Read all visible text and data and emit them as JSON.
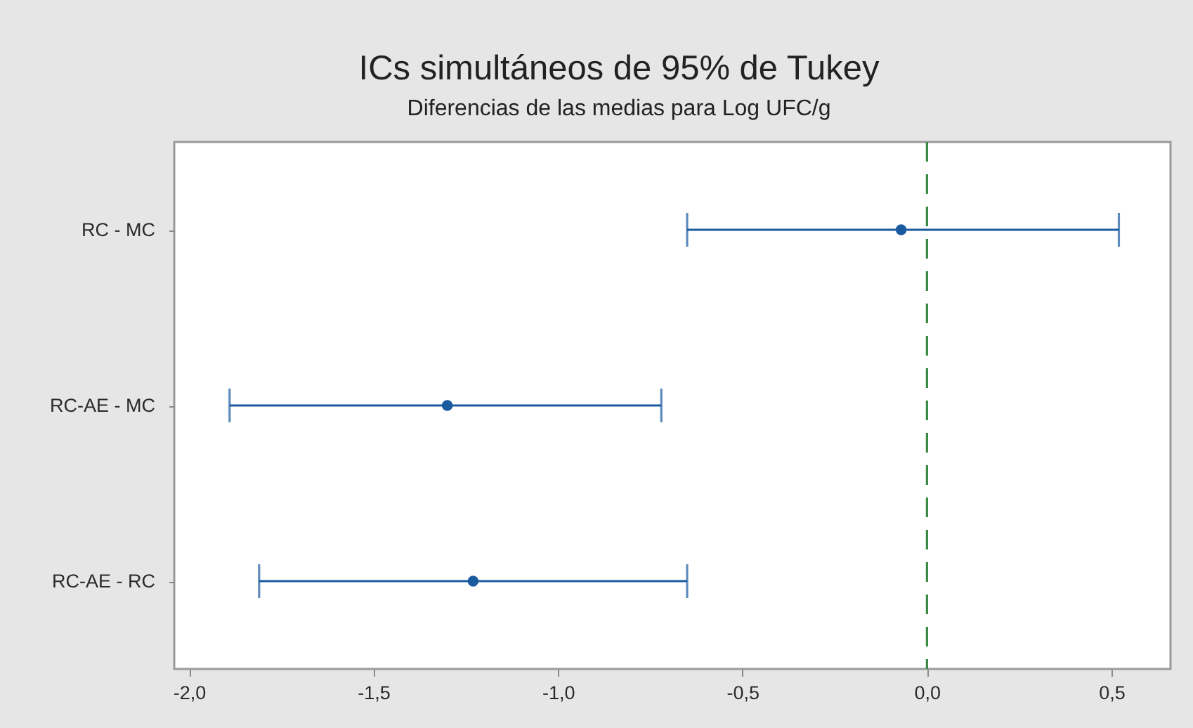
{
  "chart_data": {
    "type": "scatter",
    "orientation": "horizontal",
    "title": "ICs simultáneos de 95% de Tukey",
    "subtitle": "Diferencias de las medias para Log UFC/g",
    "categories": [
      "RC - MC",
      "RC-AE - MC",
      "RC-AE - RC"
    ],
    "values": [
      -0.07,
      -1.3,
      -1.23
    ],
    "errors": [
      [
        -0.65,
        0.52
      ],
      [
        -1.89,
        -0.72
      ],
      [
        -1.81,
        -0.65
      ]
    ],
    "color": "#1a5a9e",
    "marker": "circle",
    "xlim": [
      -2.04,
      0.66
    ],
    "xticks": [
      {
        "value": -2,
        "label": "-2,0"
      },
      {
        "value": -1.5,
        "label": "-1,5"
      },
      {
        "value": -1,
        "label": "-1,0"
      },
      {
        "value": -0.5,
        "label": "-0,5"
      },
      {
        "value": 0,
        "label": "0,0"
      },
      {
        "value": 0.5,
        "label": "0,5"
      }
    ],
    "ref_lines": [
      {
        "axis": "x",
        "value": 0,
        "color": "#3a8a45",
        "line_style": "dashed"
      }
    ]
  }
}
